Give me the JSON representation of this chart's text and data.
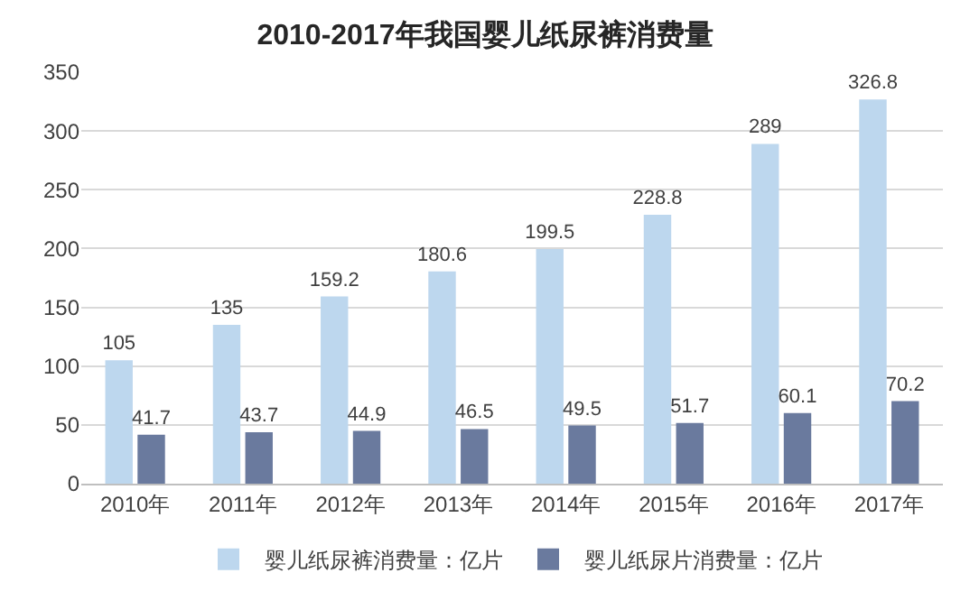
{
  "chart_data": {
    "type": "bar",
    "title": "2010-2017年我国婴儿纸尿裤消费量",
    "categories": [
      "2010年",
      "2011年",
      "2012年",
      "2013年",
      "2014年",
      "2015年",
      "2016年",
      "2017年"
    ],
    "series": [
      {
        "name": "婴儿纸尿裤消费量：亿片",
        "color": "#bdd7ee",
        "values": [
          105,
          135,
          159.2,
          180.6,
          199.5,
          228.8,
          289,
          326.8
        ]
      },
      {
        "name": "婴儿纸尿片消费量：亿片",
        "color": "#6a7a9e",
        "values": [
          41.7,
          43.7,
          44.9,
          46.5,
          49.5,
          51.7,
          60.1,
          70.2
        ]
      }
    ],
    "ylim": [
      0,
      350
    ],
    "yticks": [
      0,
      50,
      100,
      150,
      200,
      250,
      300,
      350
    ],
    "grid": "y",
    "legend": "bottom",
    "data_labels": true
  }
}
